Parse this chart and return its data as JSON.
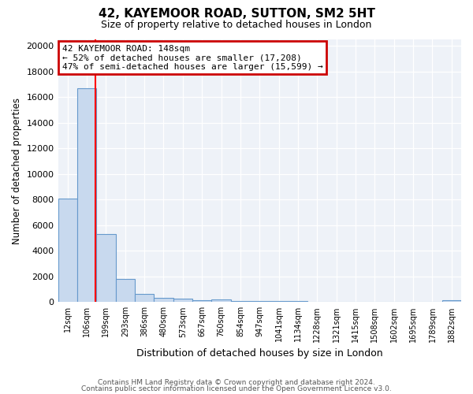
{
  "title": "42, KAYEMOOR ROAD, SUTTON, SM2 5HT",
  "subtitle": "Size of property relative to detached houses in London",
  "xlabel": "Distribution of detached houses by size in London",
  "ylabel": "Number of detached properties",
  "bin_labels": [
    "12sqm",
    "106sqm",
    "199sqm",
    "293sqm",
    "386sqm",
    "480sqm",
    "573sqm",
    "667sqm",
    "760sqm",
    "854sqm",
    "947sqm",
    "1041sqm",
    "1134sqm",
    "1228sqm",
    "1321sqm",
    "1415sqm",
    "1508sqm",
    "1602sqm",
    "1695sqm",
    "1789sqm",
    "1882sqm"
  ],
  "bar_heights": [
    8100,
    16700,
    5300,
    1800,
    650,
    300,
    250,
    150,
    200,
    100,
    80,
    60,
    50,
    40,
    35,
    30,
    25,
    20,
    15,
    15,
    150
  ],
  "bar_color": "#c8d9ee",
  "bar_edge_color": "#6699cc",
  "red_line_x": 1.45,
  "annotation_line1": "42 KAYEMOOR ROAD: 148sqm",
  "annotation_line2": "← 52% of detached houses are smaller (17,208)",
  "annotation_line3": "47% of semi-detached houses are larger (15,599) →",
  "annotation_box_color": "#ffffff",
  "annotation_border_color": "#cc0000",
  "footer1": "Contains HM Land Registry data © Crown copyright and database right 2024.",
  "footer2": "Contains public sector information licensed under the Open Government Licence v3.0.",
  "background_color": "#eef2f8",
  "ylim": [
    0,
    20500
  ],
  "yticks": [
    0,
    2000,
    4000,
    6000,
    8000,
    10000,
    12000,
    14000,
    16000,
    18000,
    20000
  ]
}
